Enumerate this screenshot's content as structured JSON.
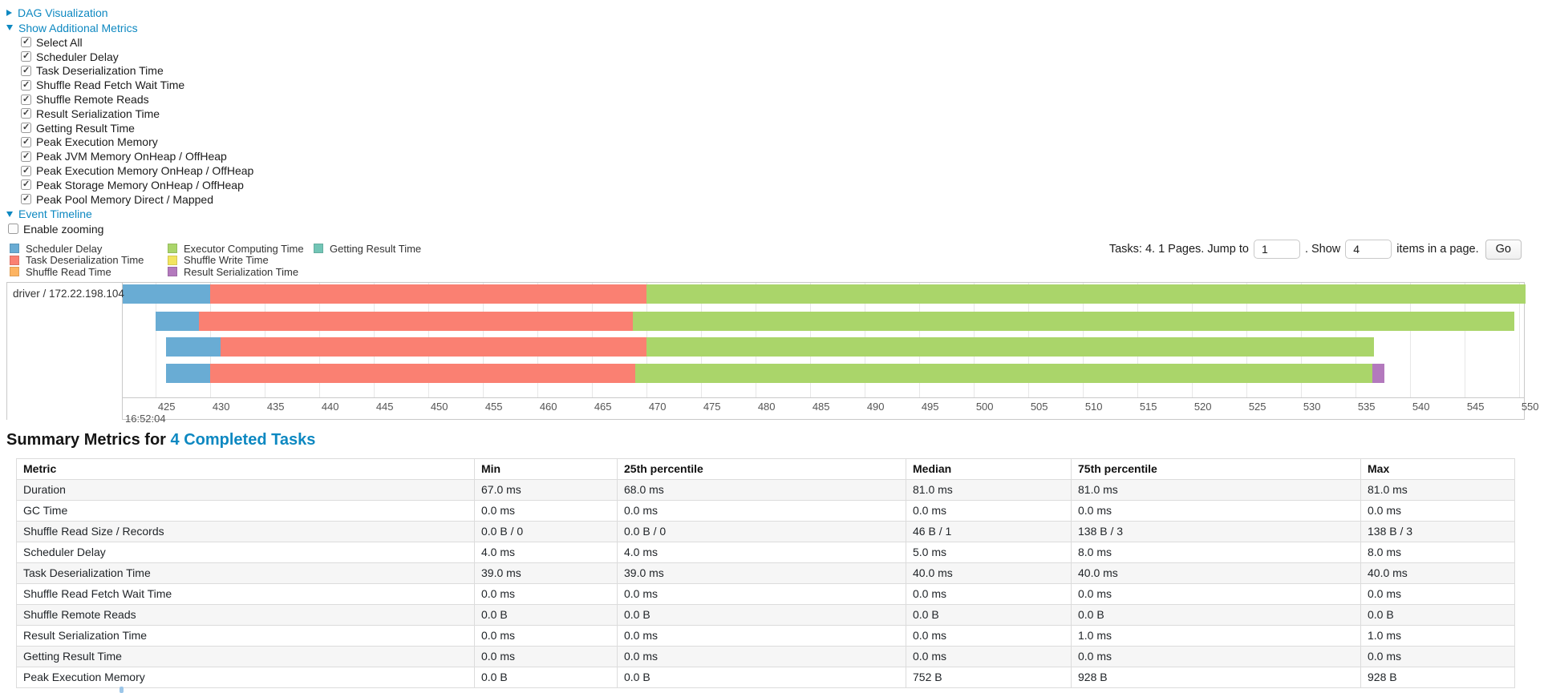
{
  "toggles": {
    "dag": "DAG Visualization",
    "metrics": "Show Additional Metrics",
    "timeline": "Event Timeline"
  },
  "metrics_panel": {
    "items": [
      {
        "label": "Select All",
        "checked": true
      },
      {
        "label": "Scheduler Delay",
        "checked": true
      },
      {
        "label": "Task Deserialization Time",
        "checked": true
      },
      {
        "label": "Shuffle Read Fetch Wait Time",
        "checked": true
      },
      {
        "label": "Shuffle Remote Reads",
        "checked": true
      },
      {
        "label": "Result Serialization Time",
        "checked": true
      },
      {
        "label": "Getting Result Time",
        "checked": true
      },
      {
        "label": "Peak Execution Memory",
        "checked": true
      },
      {
        "label": "Peak JVM Memory OnHeap / OffHeap",
        "checked": true
      },
      {
        "label": "Peak Execution Memory OnHeap / OffHeap",
        "checked": true
      },
      {
        "label": "Peak Storage Memory OnHeap / OffHeap",
        "checked": true
      },
      {
        "label": "Peak Pool Memory Direct / Mapped",
        "checked": true
      }
    ],
    "enable_zooming": {
      "label": "Enable zooming",
      "checked": false
    }
  },
  "pagination": {
    "tasks_label": "Tasks: 4. 1 Pages. Jump to",
    "jump_value": "1",
    "show_label": ". Show",
    "show_value": "4",
    "suffix_label": "items in a page.",
    "go_label": "Go"
  },
  "chart_data": {
    "type": "bar",
    "subtype": "task-event-timeline",
    "title": "Event Timeline",
    "row_label": "driver / 172.22.198.104",
    "x_axis": {
      "major_label": "16:52:04",
      "tick_start": 425,
      "tick_end": 550,
      "tick_step": 5,
      "unit": "ms",
      "grid": true
    },
    "legend_columns": [
      [
        {
          "label": "Scheduler Delay",
          "color": "#69acd4"
        },
        {
          "label": "Task Deserialization Time",
          "color": "#fa8072"
        },
        {
          "label": "Shuffle Read Time",
          "color": "#fdb462"
        }
      ],
      [
        {
          "label": "Executor Computing Time",
          "color": "#aad56a"
        },
        {
          "label": "Shuffle Write Time",
          "color": "#f2e45f"
        },
        {
          "label": "Result Serialization Time",
          "color": "#b379bd"
        }
      ],
      [
        {
          "label": "Getting Result Time",
          "color": "#72c5b6"
        }
      ]
    ],
    "tasks": [
      {
        "segments": [
          {
            "label": "Scheduler Delay",
            "start": 422.0,
            "end": 430.0
          },
          {
            "label": "Task Deserialization Time",
            "start": 430.0,
            "end": 470.0
          },
          {
            "label": "Executor Computing Time",
            "start": 470.0,
            "end": 550.6
          }
        ]
      },
      {
        "segments": [
          {
            "label": "Scheduler Delay",
            "start": 425.0,
            "end": 429.0
          },
          {
            "label": "Task Deserialization Time",
            "start": 429.0,
            "end": 468.8
          },
          {
            "label": "Executor Computing Time",
            "start": 468.8,
            "end": 549.6
          }
        ]
      },
      {
        "segments": [
          {
            "label": "Scheduler Delay",
            "start": 426.0,
            "end": 431.0
          },
          {
            "label": "Task Deserialization Time",
            "start": 431.0,
            "end": 470.0
          },
          {
            "label": "Executor Computing Time",
            "start": 470.0,
            "end": 536.7
          }
        ]
      },
      {
        "segments": [
          {
            "label": "Scheduler Delay",
            "start": 426.0,
            "end": 430.0
          },
          {
            "label": "Task Deserialization Time",
            "start": 430.0,
            "end": 469.0
          },
          {
            "label": "Executor Computing Time",
            "start": 469.0,
            "end": 536.6
          },
          {
            "label": "Result Serialization Time",
            "start": 536.6,
            "end": 537.7
          }
        ]
      }
    ]
  },
  "summary": {
    "heading_prefix": "Summary Metrics for ",
    "heading_link": "4 Completed Tasks",
    "table": {
      "headers": [
        "Metric",
        "Min",
        "25th percentile",
        "Median",
        "75th percentile",
        "Max"
      ],
      "rows": [
        [
          "Duration",
          "67.0 ms",
          "68.0 ms",
          "81.0 ms",
          "81.0 ms",
          "81.0 ms"
        ],
        [
          "GC Time",
          "0.0 ms",
          "0.0 ms",
          "0.0 ms",
          "0.0 ms",
          "0.0 ms"
        ],
        [
          "Shuffle Read Size / Records",
          "0.0 B / 0",
          "0.0 B / 0",
          "46 B / 1",
          "138 B / 3",
          "138 B / 3"
        ],
        [
          "Scheduler Delay",
          "4.0 ms",
          "4.0 ms",
          "5.0 ms",
          "8.0 ms",
          "8.0 ms"
        ],
        [
          "Task Deserialization Time",
          "39.0 ms",
          "39.0 ms",
          "40.0 ms",
          "40.0 ms",
          "40.0 ms"
        ],
        [
          "Shuffle Read Fetch Wait Time",
          "0.0 ms",
          "0.0 ms",
          "0.0 ms",
          "0.0 ms",
          "0.0 ms"
        ],
        [
          "Shuffle Remote Reads",
          "0.0 B",
          "0.0 B",
          "0.0 B",
          "0.0 B",
          "0.0 B"
        ],
        [
          "Result Serialization Time",
          "0.0 ms",
          "0.0 ms",
          "0.0 ms",
          "1.0 ms",
          "1.0 ms"
        ],
        [
          "Getting Result Time",
          "0.0 ms",
          "0.0 ms",
          "0.0 ms",
          "0.0 ms",
          "0.0 ms"
        ],
        [
          "Peak Execution Memory",
          "0.0 B",
          "0.0 B",
          "752 B",
          "928 B",
          "928 B"
        ]
      ]
    }
  }
}
